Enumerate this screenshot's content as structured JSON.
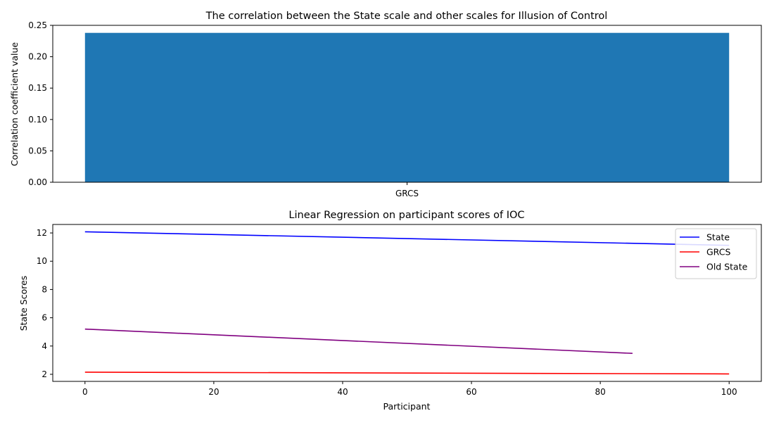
{
  "chart_data": [
    {
      "type": "bar",
      "title": "The correlation between the State scale and other scales for Illusion of Control",
      "xlabel": "",
      "ylabel": "Correlation coefficient value",
      "categories": [
        "GRCS"
      ],
      "values": [
        0.238
      ],
      "ylim": [
        0,
        0.25
      ],
      "yticks": [
        0.0,
        0.05,
        0.1,
        0.15,
        0.2,
        0.25
      ],
      "ytick_labels": [
        "0.00",
        "0.05",
        "0.10",
        "0.15",
        "0.20",
        "0.25"
      ],
      "bar_color": "#1f77b4",
      "grid": false
    },
    {
      "type": "line",
      "title": "Linear Regression on participant scores of IOC",
      "xlabel": "Participant",
      "ylabel": "State Scores",
      "xlim": [
        -5,
        105
      ],
      "ylim": [
        1.5,
        12.6
      ],
      "xticks": [
        0,
        20,
        40,
        60,
        80,
        100
      ],
      "yticks": [
        2,
        4,
        6,
        8,
        10,
        12
      ],
      "legend_position": "top-right",
      "grid": false,
      "series": [
        {
          "name": "State",
          "color": "#0000ff",
          "x": [
            0,
            100
          ],
          "y": [
            12.08,
            11.12
          ]
        },
        {
          "name": "GRCS",
          "color": "#ff0000",
          "x": [
            0,
            100
          ],
          "y": [
            2.15,
            2.03
          ]
        },
        {
          "name": "Old State",
          "color": "#800080",
          "x": [
            0,
            85
          ],
          "y": [
            5.2,
            3.48
          ]
        }
      ]
    }
  ]
}
